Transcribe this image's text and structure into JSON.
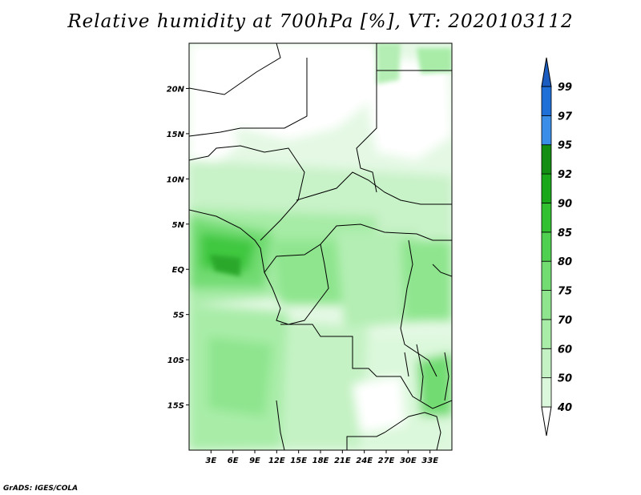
{
  "title": "Relative humidity at 700hPa [%], VT: 2020103112",
  "credit": "GrADS: IGES/COLA",
  "map": {
    "lon_range": [
      0,
      36
    ],
    "lat_range": [
      -20,
      25
    ],
    "lon_ticks": [
      {
        "value": 3,
        "label": "3E"
      },
      {
        "value": 6,
        "label": "6E"
      },
      {
        "value": 9,
        "label": "9E"
      },
      {
        "value": 12,
        "label": "12E"
      },
      {
        "value": 15,
        "label": "15E"
      },
      {
        "value": 18,
        "label": "18E"
      },
      {
        "value": 21,
        "label": "21E"
      },
      {
        "value": 24,
        "label": "24E"
      },
      {
        "value": 27,
        "label": "27E"
      },
      {
        "value": 30,
        "label": "30E"
      },
      {
        "value": 33,
        "label": "33E"
      }
    ],
    "lat_ticks": [
      {
        "value": 20,
        "label": "20N"
      },
      {
        "value": 15,
        "label": "15N"
      },
      {
        "value": 10,
        "label": "10N"
      },
      {
        "value": 5,
        "label": "5N"
      },
      {
        "value": 0,
        "label": "EQ"
      },
      {
        "value": -5,
        "label": "5S"
      },
      {
        "value": -10,
        "label": "10S"
      },
      {
        "value": -15,
        "label": "15S"
      }
    ]
  },
  "colorbar": {
    "levels": [
      {
        "label": "40",
        "color": "#f0fdf0"
      },
      {
        "label": "50",
        "color": "#dcf8dc"
      },
      {
        "label": "60",
        "color": "#c4f2c4"
      },
      {
        "label": "70",
        "color": "#a8eca8"
      },
      {
        "label": "75",
        "color": "#8ee58e"
      },
      {
        "label": "80",
        "color": "#72dc72"
      },
      {
        "label": "85",
        "color": "#50d050"
      },
      {
        "label": "90",
        "color": "#30c030"
      },
      {
        "label": "92",
        "color": "#1aa81a"
      },
      {
        "label": "95",
        "color": "#138e13"
      },
      {
        "label": "97",
        "color": "#3a8ee8"
      },
      {
        "label": "99",
        "color": "#1f6fd8"
      }
    ],
    "top_color": "#1a5cc0"
  }
}
